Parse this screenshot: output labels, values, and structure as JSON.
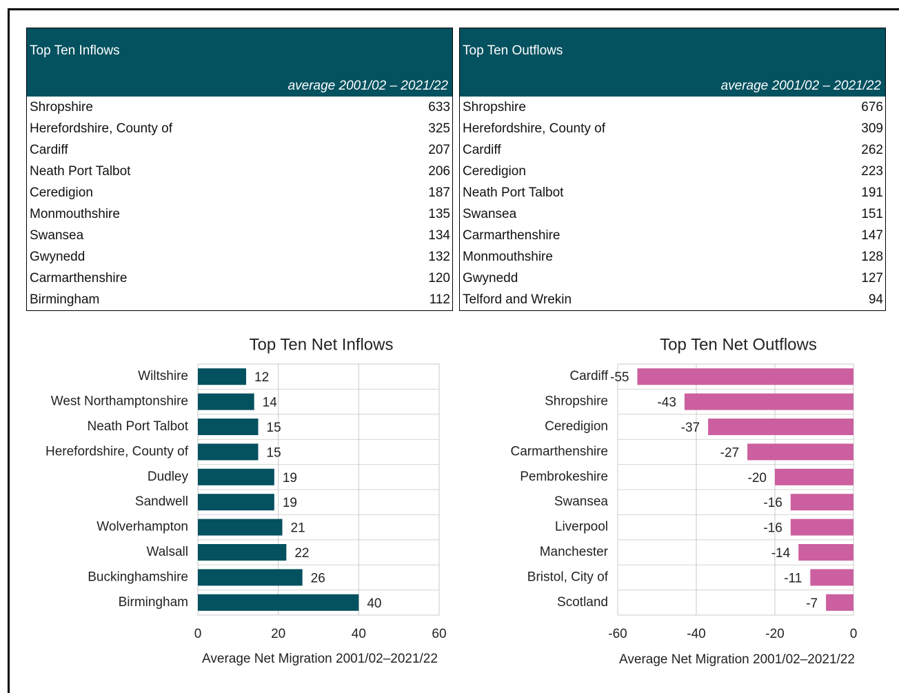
{
  "tables": [
    {
      "title": "Top Ten Inflows",
      "subtitle": "average 2001/02 – 2021/22",
      "rows": [
        [
          "Shropshire",
          633
        ],
        [
          "Herefordshire, County of",
          325
        ],
        [
          "Cardiff",
          207
        ],
        [
          "Neath Port Talbot",
          206
        ],
        [
          "Ceredigion",
          187
        ],
        [
          "Monmouthshire",
          135
        ],
        [
          "Swansea",
          134
        ],
        [
          "Gwynedd",
          132
        ],
        [
          "Carmarthenshire",
          120
        ],
        [
          "Birmingham",
          112
        ]
      ]
    },
    {
      "title": "Top Ten Outflows",
      "subtitle": "average 2001/02 – 2021/22",
      "rows": [
        [
          "Shropshire",
          676
        ],
        [
          "Herefordshire, County of",
          309
        ],
        [
          "Cardiff",
          262
        ],
        [
          "Ceredigion",
          223
        ],
        [
          "Neath Port Talbot",
          191
        ],
        [
          "Swansea",
          151
        ],
        [
          "Carmarthenshire",
          147
        ],
        [
          "Monmouthshire",
          128
        ],
        [
          "Gwynedd",
          127
        ],
        [
          "Telford and Wrekin",
          94
        ]
      ]
    }
  ],
  "chart_data": [
    {
      "type": "bar",
      "orientation": "horizontal",
      "title": "Top Ten Net Inflows",
      "categories": [
        "Wiltshire",
        "West Northamptonshire",
        "Neath Port Talbot",
        "Herefordshire, County of",
        "Dudley",
        "Sandwell",
        "Wolverhampton",
        "Walsall",
        "Buckinghamshire",
        "Birmingham"
      ],
      "values": [
        12,
        14,
        15,
        15,
        19,
        19,
        21,
        22,
        26,
        40
      ],
      "color": "#04515f",
      "xlim": [
        0,
        60
      ],
      "xticks": [
        0,
        20,
        40,
        60
      ],
      "x_label": "Average Net Migration 2001/02–2021/22",
      "grid": true
    },
    {
      "type": "bar",
      "orientation": "horizontal",
      "title": "Top Ten Net Outflows",
      "categories": [
        "Cardiff",
        "Shropshire",
        "Ceredigion",
        "Carmarthenshire",
        "Pembrokeshire",
        "Swansea",
        "Liverpool",
        "Manchester",
        "Bristol, City of",
        "Scotland"
      ],
      "values": [
        -55,
        -43,
        -37,
        -27,
        -20,
        -16,
        -16,
        -14,
        -11,
        -7
      ],
      "color": "#cc5f9f",
      "xlim": [
        -60,
        0
      ],
      "xticks": [
        -60,
        -40,
        -20,
        0
      ],
      "x_label": "Average Net Migration 2001/02–2021/22",
      "grid": true
    }
  ]
}
